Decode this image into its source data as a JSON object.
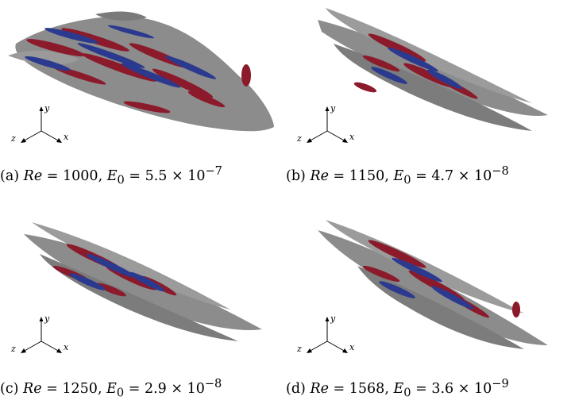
{
  "figure": {
    "panels": [
      {
        "id": "a",
        "label": "(a)",
        "re_symbol": "Re",
        "re_value": "1000",
        "e_symbol": "E",
        "e_sub": "0",
        "e_mantissa": "5.5",
        "e_exponent": "−7"
      },
      {
        "id": "b",
        "label": "(b)",
        "re_symbol": "Re",
        "re_value": "1150",
        "e_symbol": "E",
        "e_sub": "0",
        "e_mantissa": "4.7",
        "e_exponent": "−8"
      },
      {
        "id": "c",
        "label": "(c)",
        "re_symbol": "Re",
        "re_value": "1250",
        "e_symbol": "E",
        "e_sub": "0",
        "e_mantissa": "2.9",
        "e_exponent": "−8"
      },
      {
        "id": "d",
        "label": "(d)",
        "re_symbol": "Re",
        "re_value": "1568",
        "e_symbol": "E",
        "e_sub": "0",
        "e_mantissa": "3.6",
        "e_exponent": "−9"
      }
    ],
    "axes_labels": {
      "x": "x",
      "y": "y",
      "z": "z"
    },
    "colors": {
      "surface": "#8c8c8c",
      "surface_dark": "#5f5f5f",
      "positive": "#8b1a2b",
      "negative": "#2b3a8f"
    }
  }
}
